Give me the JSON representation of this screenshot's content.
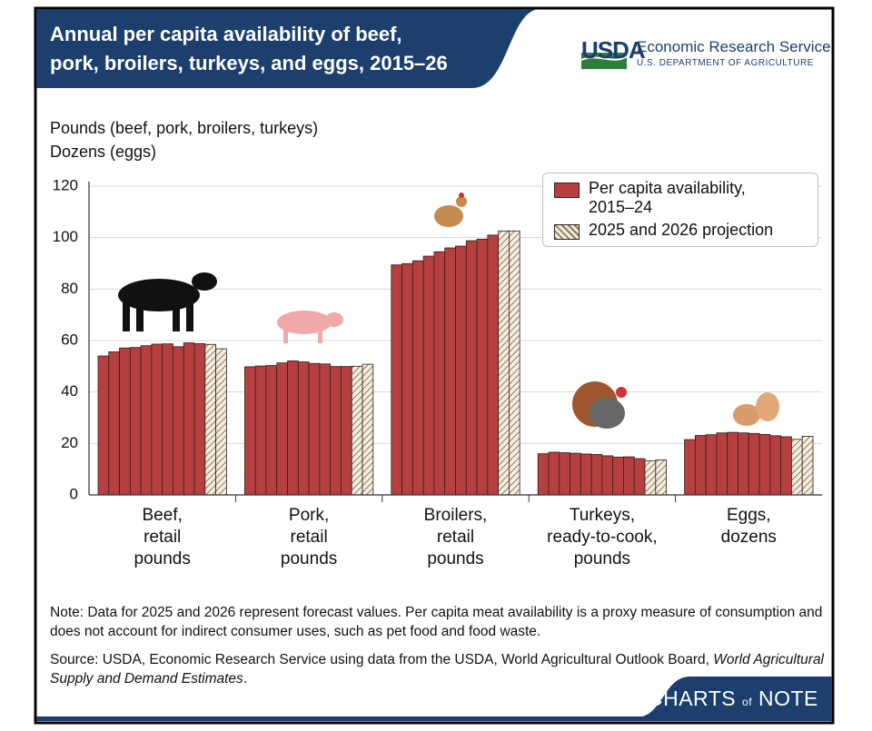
{
  "header": {
    "logo": "USDA",
    "agency": "Economic Research Service",
    "department": "U.S. DEPARTMENT OF AGRICULTURE"
  },
  "footer": {
    "brand": [
      "CHARTS",
      "of",
      "NOTE"
    ]
  },
  "chart_data": {
    "type": "bar",
    "title": [
      "Annual per capita availability of beef,",
      "pork, broilers, turkeys, and eggs, 2015–26"
    ],
    "ylabel": [
      "Pounds (beef, pork, broilers, turkeys)",
      "Dozens (eggs)"
    ],
    "categories": [
      [
        "Beef,",
        "retail",
        "pounds"
      ],
      [
        "Pork,",
        "retail",
        "pounds"
      ],
      [
        "Broilers,",
        "retail",
        "pounds"
      ],
      [
        "Turkeys,",
        "ready-to-cook,",
        "pounds"
      ],
      [
        "Eggs,",
        "dozens"
      ]
    ],
    "series": [
      {
        "name": "Per capita availability, 2015–24",
        "color": "#b5403f",
        "values": [
          [
            54.0,
            55.6,
            57.1,
            57.3,
            58.0,
            58.6,
            58.7,
            57.6,
            59.1,
            58.8
          ],
          [
            49.8,
            50.1,
            50.3,
            51.3,
            52.1,
            51.7,
            51.1,
            50.9,
            49.9,
            49.9
          ],
          [
            89.4,
            89.9,
            91.0,
            92.8,
            94.5,
            96.0,
            96.7,
            98.8,
            99.4,
            101.0
          ],
          [
            16.0,
            16.6,
            16.4,
            16.2,
            15.9,
            15.7,
            15.2,
            14.7,
            14.8,
            14.1
          ],
          [
            21.5,
            23.1,
            23.4,
            24.1,
            24.3,
            24.1,
            23.9,
            23.5,
            23.0,
            22.6
          ]
        ]
      },
      {
        "name": "2025 and 2026 projection",
        "color": "#8a7b5c",
        "hatch": true,
        "values": [
          [
            58.5,
            56.8
          ],
          [
            50.0,
            50.8
          ],
          [
            102.6,
            102.6
          ],
          [
            13.2,
            13.6
          ],
          [
            21.6,
            22.8
          ]
        ]
      }
    ],
    "ylim": [
      0,
      120
    ],
    "yticks": [
      0,
      20,
      40,
      60,
      80,
      100,
      120
    ],
    "grid": true,
    "note": "Note: Data for 2025 and 2026 represent forecast values. Per capita meat availability is a proxy measure of consumption and does not account for indirect consumer uses, such as pet food and food waste.",
    "source": [
      "Source: USDA, Economic Research Service using data from the USDA, World Agricultural Outlook Board,",
      "World Agricultural Supply and Demand Estimates",
      "."
    ]
  }
}
